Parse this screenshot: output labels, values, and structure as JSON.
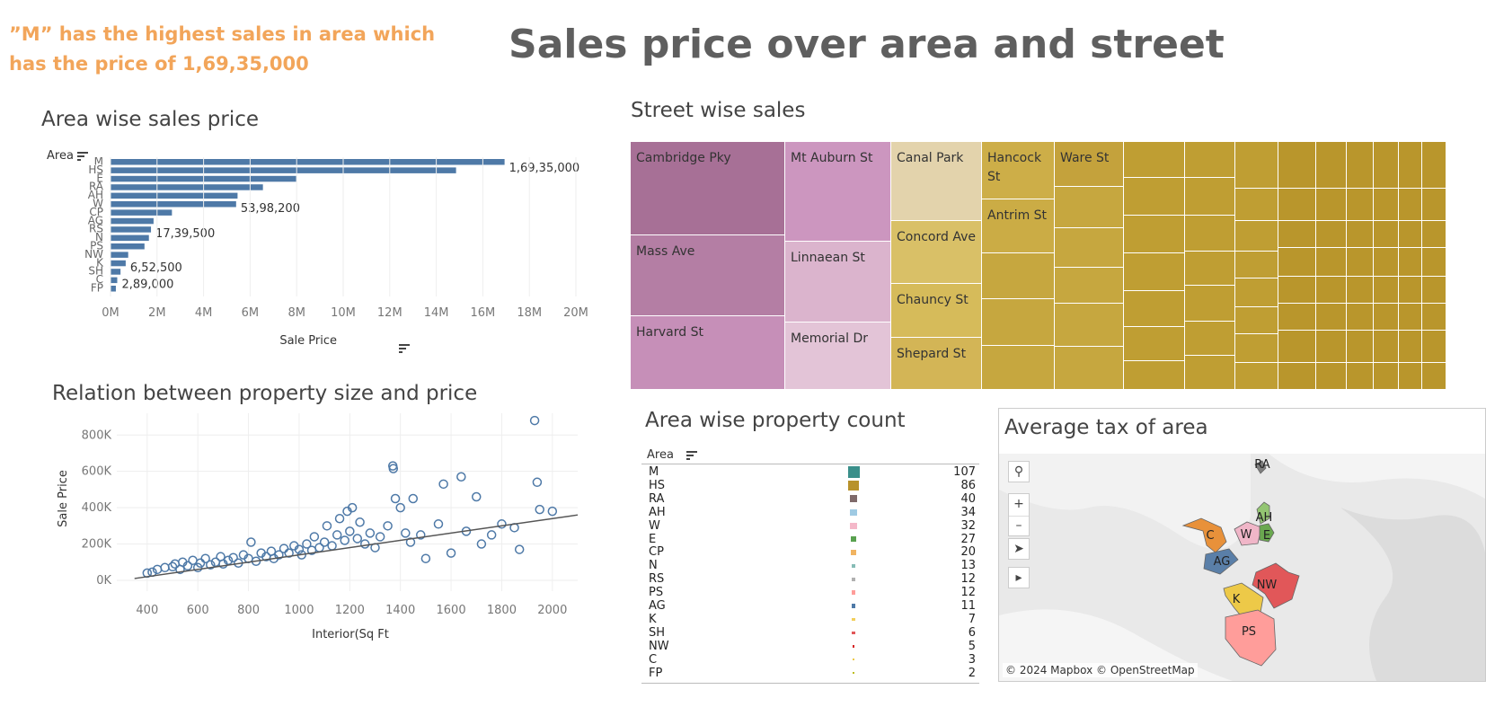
{
  "headline": "”M” has the highest sales in area which has the price of 1,69,35,000",
  "title": "Sales price over area and street",
  "area_sales": {
    "title": "Area wise sales price",
    "row_header": "Area",
    "x_label": "Sale Price",
    "ticks": [
      "0M",
      "2M",
      "4M",
      "6M",
      "8M",
      "10M",
      "12M",
      "14M",
      "16M",
      "18M",
      "20M"
    ]
  },
  "street_sales": {
    "title": "Street wise sales"
  },
  "scatter_section": {
    "title": "Relation between property size and price"
  },
  "count_section": {
    "title": "Area wise property count",
    "row_header": "Area"
  },
  "tax_map": {
    "title": "Average tax of area",
    "credit": "© 2024 Mapbox © OpenStreetMap",
    "controls": [
      "search-icon",
      "zoom-in-icon",
      "zoom-out-icon",
      "pin-icon",
      "play-icon"
    ],
    "regions": [
      {
        "label": "RA",
        "color": "#7f7f7f"
      },
      {
        "label": "AH",
        "color": "#93c572"
      },
      {
        "label": "C",
        "color": "#e8913a"
      },
      {
        "label": "W",
        "color": "#f0b6c8"
      },
      {
        "label": "E",
        "color": "#6aa84f"
      },
      {
        "label": "AG",
        "color": "#5a7fa8"
      },
      {
        "label": "NW",
        "color": "#e15759"
      },
      {
        "label": "K",
        "color": "#edc948"
      },
      {
        "label": "PS",
        "color": "#ff9d9a"
      }
    ]
  },
  "colors": {
    "bar": "#4e79a7",
    "headline": "#f2a55a",
    "purple": "#b07aa1",
    "gold": "#c9a227"
  },
  "chart_data": [
    {
      "type": "bar",
      "title": "Area wise sales price",
      "categories": [
        "M",
        "HS",
        "E",
        "RA",
        "AH",
        "W",
        "CP",
        "AG",
        "RS",
        "N",
        "PS",
        "NW",
        "K",
        "SH",
        "C",
        "FP"
      ],
      "values": [
        16935000,
        14850000,
        7980000,
        6550000,
        5460000,
        5398200,
        2640000,
        1850000,
        1739500,
        1650000,
        1460000,
        760000,
        652500,
        430000,
        289000,
        230000
      ],
      "data_labels": {
        "M": "1,69,35,000",
        "W": "53,98,200",
        "RS": "17,39,500",
        "K": "6,52,500",
        "C": "2,89,000"
      },
      "xlabel": "Sale Price",
      "ylabel": "Area",
      "xlim": [
        0,
        20000000
      ]
    },
    {
      "type": "treemap",
      "title": "Street wise sales",
      "series": [
        {
          "name": "Cambridge Pky",
          "color": "#a77096"
        },
        {
          "name": "Mass Ave",
          "color": "#b47ea4"
        },
        {
          "name": "Harvard St",
          "color": "#c68fb8"
        },
        {
          "name": "Mt Auburn St",
          "color": "#cc96bf"
        },
        {
          "name": "Linnaean St",
          "color": "#dbb4cd"
        },
        {
          "name": "Memorial Dr",
          "color": "#e3c4d7"
        },
        {
          "name": "Canal Park",
          "color": "#e3d3ac"
        },
        {
          "name": "Concord Ave",
          "color": "#d9c067"
        },
        {
          "name": "Chauncy St",
          "color": "#d6bb5a"
        },
        {
          "name": "Shepard St",
          "color": "#d3b556"
        },
        {
          "name": "Hancock St",
          "color": "#cdae48"
        },
        {
          "name": "Antrim St",
          "color": "#cbac45"
        },
        {
          "name": "Ware St",
          "color": "#c4a23c"
        }
      ]
    },
    {
      "type": "scatter",
      "title": "Relation between property size and price",
      "xlabel": "Interior(Sq Ft",
      "ylabel": "Sale Price",
      "x_ticks": [
        "400",
        "600",
        "800",
        "1000",
        "1200",
        "1400",
        "1600",
        "1800",
        "2000"
      ],
      "y_ticks": [
        "0K",
        "200K",
        "400K",
        "600K",
        "800K"
      ],
      "xlim": [
        280,
        2100
      ],
      "ylim": [
        -20000,
        920000
      ],
      "trend": [
        [
          350,
          10000
        ],
        [
          2100,
          360000
        ]
      ],
      "points": [
        [
          400,
          40000
        ],
        [
          420,
          45000
        ],
        [
          440,
          60000
        ],
        [
          470,
          70000
        ],
        [
          500,
          75000
        ],
        [
          510,
          90000
        ],
        [
          530,
          60000
        ],
        [
          540,
          100000
        ],
        [
          560,
          80000
        ],
        [
          580,
          110000
        ],
        [
          600,
          70000
        ],
        [
          610,
          95000
        ],
        [
          630,
          120000
        ],
        [
          650,
          85000
        ],
        [
          670,
          100000
        ],
        [
          690,
          130000
        ],
        [
          700,
          90000
        ],
        [
          720,
          110000
        ],
        [
          740,
          125000
        ],
        [
          760,
          95000
        ],
        [
          780,
          140000
        ],
        [
          800,
          120000
        ],
        [
          810,
          210000
        ],
        [
          830,
          105000
        ],
        [
          850,
          150000
        ],
        [
          870,
          130000
        ],
        [
          890,
          160000
        ],
        [
          900,
          120000
        ],
        [
          920,
          140000
        ],
        [
          940,
          175000
        ],
        [
          960,
          150000
        ],
        [
          980,
          190000
        ],
        [
          1000,
          170000
        ],
        [
          1010,
          140000
        ],
        [
          1030,
          200000
        ],
        [
          1050,
          165000
        ],
        [
          1060,
          240000
        ],
        [
          1080,
          180000
        ],
        [
          1100,
          210000
        ],
        [
          1110,
          300000
        ],
        [
          1130,
          190000
        ],
        [
          1150,
          250000
        ],
        [
          1160,
          340000
        ],
        [
          1180,
          220000
        ],
        [
          1190,
          380000
        ],
        [
          1200,
          270000
        ],
        [
          1210,
          400000
        ],
        [
          1230,
          230000
        ],
        [
          1240,
          320000
        ],
        [
          1260,
          200000
        ],
        [
          1280,
          260000
        ],
        [
          1300,
          180000
        ],
        [
          1320,
          240000
        ],
        [
          1350,
          300000
        ],
        [
          1370,
          630000
        ],
        [
          1372,
          615000
        ],
        [
          1380,
          450000
        ],
        [
          1400,
          400000
        ],
        [
          1420,
          260000
        ],
        [
          1440,
          210000
        ],
        [
          1450,
          450000
        ],
        [
          1480,
          250000
        ],
        [
          1500,
          120000
        ],
        [
          1550,
          310000
        ],
        [
          1570,
          530000
        ],
        [
          1600,
          150000
        ],
        [
          1640,
          570000
        ],
        [
          1660,
          270000
        ],
        [
          1700,
          460000
        ],
        [
          1720,
          200000
        ],
        [
          1760,
          250000
        ],
        [
          1800,
          310000
        ],
        [
          1850,
          290000
        ],
        [
          1870,
          170000
        ],
        [
          1930,
          880000
        ],
        [
          1940,
          540000
        ],
        [
          1950,
          390000
        ],
        [
          2000,
          380000
        ]
      ]
    },
    {
      "type": "bar",
      "title": "Area wise property count",
      "categories": [
        "M",
        "HS",
        "RA",
        "AH",
        "W",
        "E",
        "CP",
        "N",
        "RS",
        "PS",
        "AG",
        "K",
        "SH",
        "NW",
        "C",
        "FP"
      ],
      "values": [
        107,
        86,
        40,
        34,
        32,
        27,
        20,
        13,
        12,
        12,
        11,
        7,
        6,
        5,
        3,
        2
      ],
      "colors": [
        "#3a8f8a",
        "#b8922b",
        "#7f6a6a",
        "#9fcae3",
        "#f4b8c9",
        "#59a14f",
        "#f1b461",
        "#86bcb6",
        "#b0b0b0",
        "#ff9d9a",
        "#4e79a7",
        "#f2cf5b",
        "#e15759",
        "#d62728",
        "#edc948",
        "#bcbd22"
      ]
    }
  ]
}
